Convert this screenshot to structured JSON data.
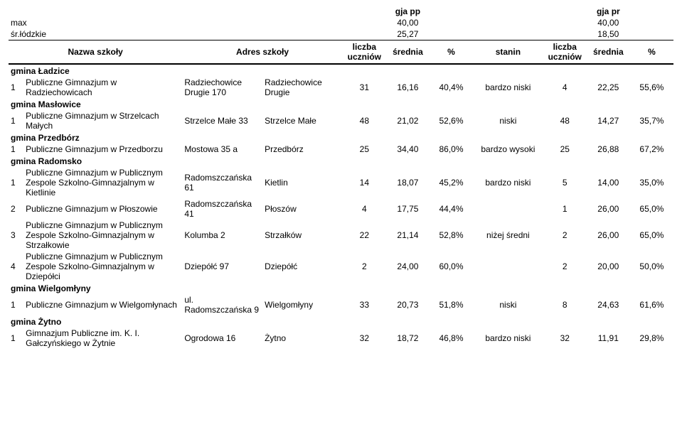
{
  "header": {
    "gja_pp": "gja pp",
    "gja_pr": "gja pr",
    "max": "max",
    "max_pp": "40,00",
    "max_pr": "40,00",
    "sr_lodzkie": "śr.łódzkie",
    "sr_pp": "25,27",
    "sr_pr": "18,50",
    "nazwa": "Nazwa szkoły",
    "adres": "Adres szkoły",
    "liczba_uczniow": "liczba uczniów",
    "srednia": "średnia",
    "pct": "%",
    "stanin": "stanin"
  },
  "groups": [
    {
      "gmina": "gmina Ładzice",
      "rows": [
        {
          "idx": "1",
          "name": "Publiczne Gimnazjum w Radziechowicach",
          "addr1": "Radziechowice Drugie 170",
          "addr2": "Radziechowice Drugie",
          "lu1": "31",
          "sr1": "16,16",
          "pct1": "40,4%",
          "stanin": "bardzo niski",
          "lu2": "4",
          "sr2": "22,25",
          "pct2": "55,6%"
        }
      ]
    },
    {
      "gmina": "gmina Masłowice",
      "rows": [
        {
          "idx": "1",
          "name": "Publiczne Gimnazjum w Strzelcach Małych",
          "addr1": "Strzelce Małe 33",
          "addr2": "Strzelce Małe",
          "lu1": "48",
          "sr1": "21,02",
          "pct1": "52,6%",
          "stanin": "niski",
          "lu2": "48",
          "sr2": "14,27",
          "pct2": "35,7%"
        }
      ]
    },
    {
      "gmina": "gmina Przedbórz",
      "rows": [
        {
          "idx": "1",
          "name": "Publiczne Gimnazjum w Przedborzu",
          "addr1": "Mostowa 35 a",
          "addr2": "Przedbórz",
          "lu1": "25",
          "sr1": "34,40",
          "pct1": "86,0%",
          "stanin": "bardzo wysoki",
          "lu2": "25",
          "sr2": "26,88",
          "pct2": "67,2%"
        }
      ]
    },
    {
      "gmina": "gmina Radomsko",
      "rows": [
        {
          "idx": "1",
          "name": "Publiczne Gimnazjum w Publicznym Zespole Szkolno-Gimnazjalnym w Kietlinie",
          "addr1": "Radomszczańska 61",
          "addr2": "Kietlin",
          "lu1": "14",
          "sr1": "18,07",
          "pct1": "45,2%",
          "stanin": "bardzo niski",
          "lu2": "5",
          "sr2": "14,00",
          "pct2": "35,0%"
        },
        {
          "idx": "2",
          "name": "Publiczne Gimnazjum w Płoszowie",
          "addr1": "Radomszczańska 41",
          "addr2": "Płoszów",
          "lu1": "4",
          "sr1": "17,75",
          "pct1": "44,4%",
          "stanin": "",
          "lu2": "1",
          "sr2": "26,00",
          "pct2": "65,0%"
        },
        {
          "idx": "3",
          "name": "Publiczne Gimnazjum w Publicznym Zespole Szkolno-Gimnazjalnym w Strzałkowie",
          "addr1": "Kolumba 2",
          "addr2": "Strzałków",
          "lu1": "22",
          "sr1": "21,14",
          "pct1": "52,8%",
          "stanin": "niżej średni",
          "lu2": "2",
          "sr2": "26,00",
          "pct2": "65,0%"
        },
        {
          "idx": "4",
          "name": "Publiczne Gimnazjum w Publicznym Zespole Szkolno-Gimnazjalnym w Dziepółci",
          "addr1": "Dziepółć 97",
          "addr2": "Dziepółć",
          "lu1": "2",
          "sr1": "24,00",
          "pct1": "60,0%",
          "stanin": "",
          "lu2": "2",
          "sr2": "20,00",
          "pct2": "50,0%"
        }
      ]
    },
    {
      "gmina": "gmina Wielgomłyny",
      "rows": [
        {
          "idx": "1",
          "name": "Publiczne Gimnazjum w Wielgomłynach",
          "addr1": "ul. Radomszczańska 9",
          "addr2": "Wielgomłyny",
          "lu1": "33",
          "sr1": "20,73",
          "pct1": "51,8%",
          "stanin": "niski",
          "lu2": "8",
          "sr2": "24,63",
          "pct2": "61,6%"
        }
      ]
    },
    {
      "gmina": "gmina Żytno",
      "rows": [
        {
          "idx": "1",
          "name": "Gimnazjum Publiczne im. K. I. Gałczyńskiego w Żytnie",
          "addr1": "Ogrodowa 16",
          "addr2": "Żytno",
          "lu1": "32",
          "sr1": "18,72",
          "pct1": "46,8%",
          "stanin": "bardzo niski",
          "lu2": "32",
          "sr2": "11,91",
          "pct2": "29,8%"
        }
      ]
    }
  ]
}
